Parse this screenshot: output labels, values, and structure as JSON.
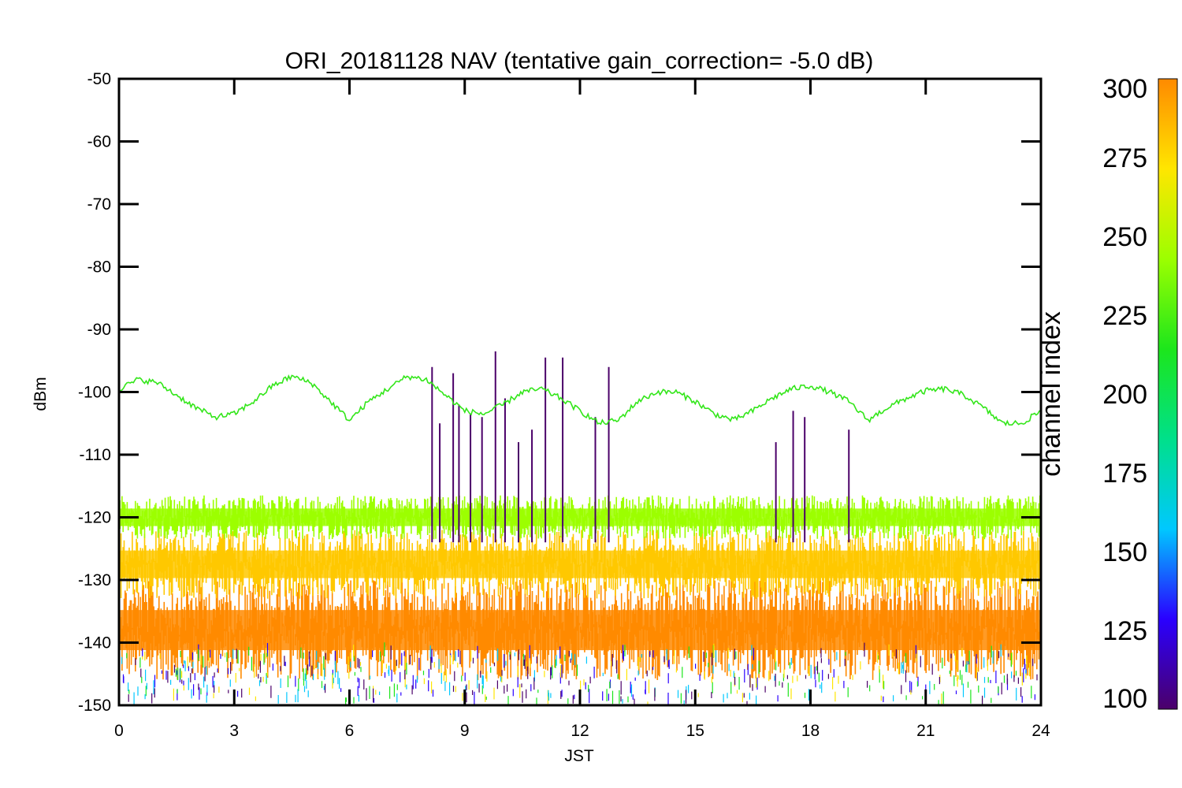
{
  "chart_data": {
    "type": "line",
    "title": "ORI_20181128 NAV (tentative gain_correction= -5.0 dB)",
    "xlabel": "JST",
    "ylabel": "dBm",
    "xlim": [
      0,
      24
    ],
    "ylim": [
      -150,
      -50
    ],
    "x_ticks": [
      0,
      3,
      6,
      9,
      12,
      15,
      18,
      21,
      24
    ],
    "x_tick_labels": [
      "0",
      "3",
      "6",
      "9",
      "12",
      "15",
      "18",
      "21",
      "24"
    ],
    "y_ticks": [
      -150,
      -140,
      -130,
      -120,
      -110,
      -100,
      -90,
      -80,
      -70,
      -60,
      -50
    ],
    "y_tick_labels": [
      "-150",
      "-140",
      "-130",
      "-120",
      "-110",
      "-100",
      "-90",
      "-80",
      "-70",
      "-60",
      "-50"
    ],
    "grid": false,
    "colorbar": {
      "label": "channel index",
      "range": [
        100,
        300
      ],
      "ticks": [
        100,
        125,
        150,
        175,
        200,
        225,
        250,
        275,
        300
      ],
      "tick_labels": [
        "100",
        "125",
        "150",
        "175",
        "200",
        "225",
        "250",
        "275",
        "300"
      ],
      "colormap": [
        "#4b0069",
        "#2a00ff",
        "#00c8ff",
        "#00e08a",
        "#1ce61c",
        "#9cff00",
        "#ffe600",
        "#ff8a00"
      ]
    },
    "series": [
      {
        "channel_index": 220,
        "color": "#33e61a",
        "x": [
          0,
          0.5,
          1,
          1.5,
          2,
          2.5,
          3,
          3.5,
          4,
          4.5,
          5,
          5.5,
          6,
          6.5,
          7,
          7.5,
          8,
          8.5,
          9,
          9.5,
          10,
          10.5,
          11,
          11.5,
          12,
          12.5,
          13,
          13.5,
          14,
          14.5,
          15,
          15.5,
          16,
          16.5,
          17,
          17.5,
          18,
          18.5,
          19,
          19.5,
          20,
          20.5,
          21,
          21.5,
          22,
          22.5,
          23,
          23.5,
          24
        ],
        "y": [
          -99.5,
          -98,
          -98.5,
          -100.5,
          -102.5,
          -104,
          -103.5,
          -101.5,
          -99,
          -97.5,
          -98.5,
          -101.5,
          -104.5,
          -101.5,
          -99.5,
          -97.5,
          -98,
          -100.5,
          -103,
          -103.5,
          -102,
          -100,
          -99.5,
          -101,
          -103,
          -105,
          -104.5,
          -101.5,
          -100,
          -100,
          -101.5,
          -103.5,
          -104.5,
          -103,
          -101,
          -99.5,
          -99,
          -100,
          -101.5,
          -104.5,
          -102.5,
          -101,
          -99.8,
          -99.5,
          -100.5,
          -102.5,
          -105,
          -105,
          -103
        ]
      },
      {
        "channel_index": 260,
        "color": "#9cff00",
        "band": [
          -123.5,
          -116.5
        ],
        "center": -120
      },
      {
        "channel_index": 280,
        "color": "#ffc800",
        "band": [
          -133,
          -122
        ],
        "center": -127
      },
      {
        "channel_index": 295,
        "color": "#ff8a00",
        "band": [
          -146,
          -130
        ],
        "center": -138
      }
    ],
    "spikes": {
      "channel_index": 105,
      "color": "#4b0069",
      "x": [
        8.15,
        8.35,
        8.7,
        8.85,
        9.15,
        9.45,
        9.8,
        10.05,
        10.4,
        10.75,
        11.1,
        11.55,
        12.4,
        12.75,
        17.1,
        17.55,
        17.85,
        19.0
      ],
      "y": [
        -96,
        -105,
        -97,
        -102,
        -103.5,
        -104,
        -93.5,
        -101,
        -108,
        -106,
        -94.5,
        -94.5,
        -104,
        -96,
        -108,
        -103,
        -104,
        -106
      ]
    }
  }
}
